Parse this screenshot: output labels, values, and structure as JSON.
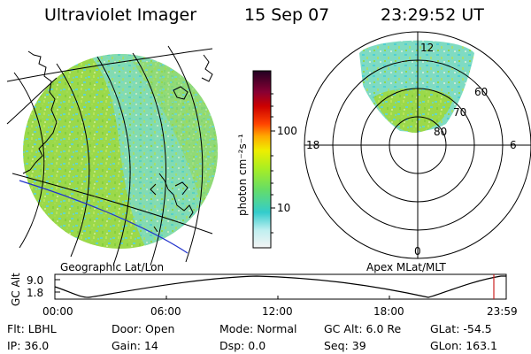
{
  "header": {
    "instrument": "Ultraviolet Imager",
    "date": "15 Sep 07",
    "time": "23:29:52 UT"
  },
  "colorbar": {
    "unit_label": "photon cm⁻²s⁻¹",
    "ticks": [
      "100",
      "10"
    ]
  },
  "left_map": {
    "caption": "Geographic Lat/Lon"
  },
  "polar_plot": {
    "caption": "Apex  MLat/MLT",
    "mlt_labels": [
      "12",
      "18",
      "6",
      "0"
    ],
    "mlat_labels": [
      "60",
      "70",
      "80"
    ]
  },
  "altitude_chart": {
    "ylabel": "GC Alt",
    "yticks": [
      "9.0",
      "1.8"
    ],
    "xticks": [
      "00:00",
      "06:00",
      "12:00",
      "18:00",
      "23:59"
    ]
  },
  "info": {
    "row1": [
      {
        "label": "Flt:",
        "value": "LBHL"
      },
      {
        "label": "Door:",
        "value": "Open"
      },
      {
        "label": "Mode:",
        "value": "Normal"
      },
      {
        "label": "GC Alt:",
        "value": "6.0 Re"
      },
      {
        "label": "GLat:",
        "value": "-54.5"
      }
    ],
    "row2": [
      {
        "label": "IP:",
        "value": "36.0"
      },
      {
        "label": "Gain:",
        "value": "14"
      },
      {
        "label": "Dsp:",
        "value": "0.0"
      },
      {
        "label": "Seq:",
        "value": "39"
      },
      {
        "label": "GLon:",
        "value": "163.1"
      }
    ]
  }
}
